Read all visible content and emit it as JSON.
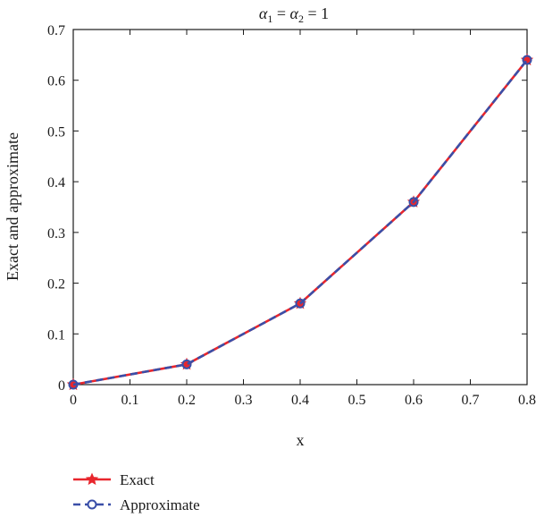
{
  "chart_data": {
    "type": "line",
    "title_parts": {
      "alpha": "α",
      "sub1": "1",
      "sub2": "2",
      "eq": " = ",
      "value": "1"
    },
    "xlabel": "x",
    "ylabel": "Exact and approximate",
    "xlim": [
      0,
      0.8
    ],
    "ylim": [
      0,
      0.7
    ],
    "xticks": [
      0,
      0.1,
      0.2,
      0.3,
      0.4,
      0.5,
      0.6,
      0.7,
      0.8
    ],
    "yticks": [
      0,
      0.1,
      0.2,
      0.3,
      0.4,
      0.5,
      0.6,
      0.7
    ],
    "x": [
      0,
      0.2,
      0.4,
      0.6,
      0.8
    ],
    "series": [
      {
        "name": "Exact",
        "values": [
          0,
          0.04,
          0.16,
          0.36,
          0.64
        ],
        "color": "#e8262d",
        "marker": "star",
        "dash": "solid"
      },
      {
        "name": "Approximate",
        "values": [
          0,
          0.04,
          0.16,
          0.36,
          0.64
        ],
        "color": "#3a4fa8",
        "marker": "circle",
        "dash": "dashed"
      }
    ],
    "grid": false,
    "legend_position": "bottom-left"
  }
}
